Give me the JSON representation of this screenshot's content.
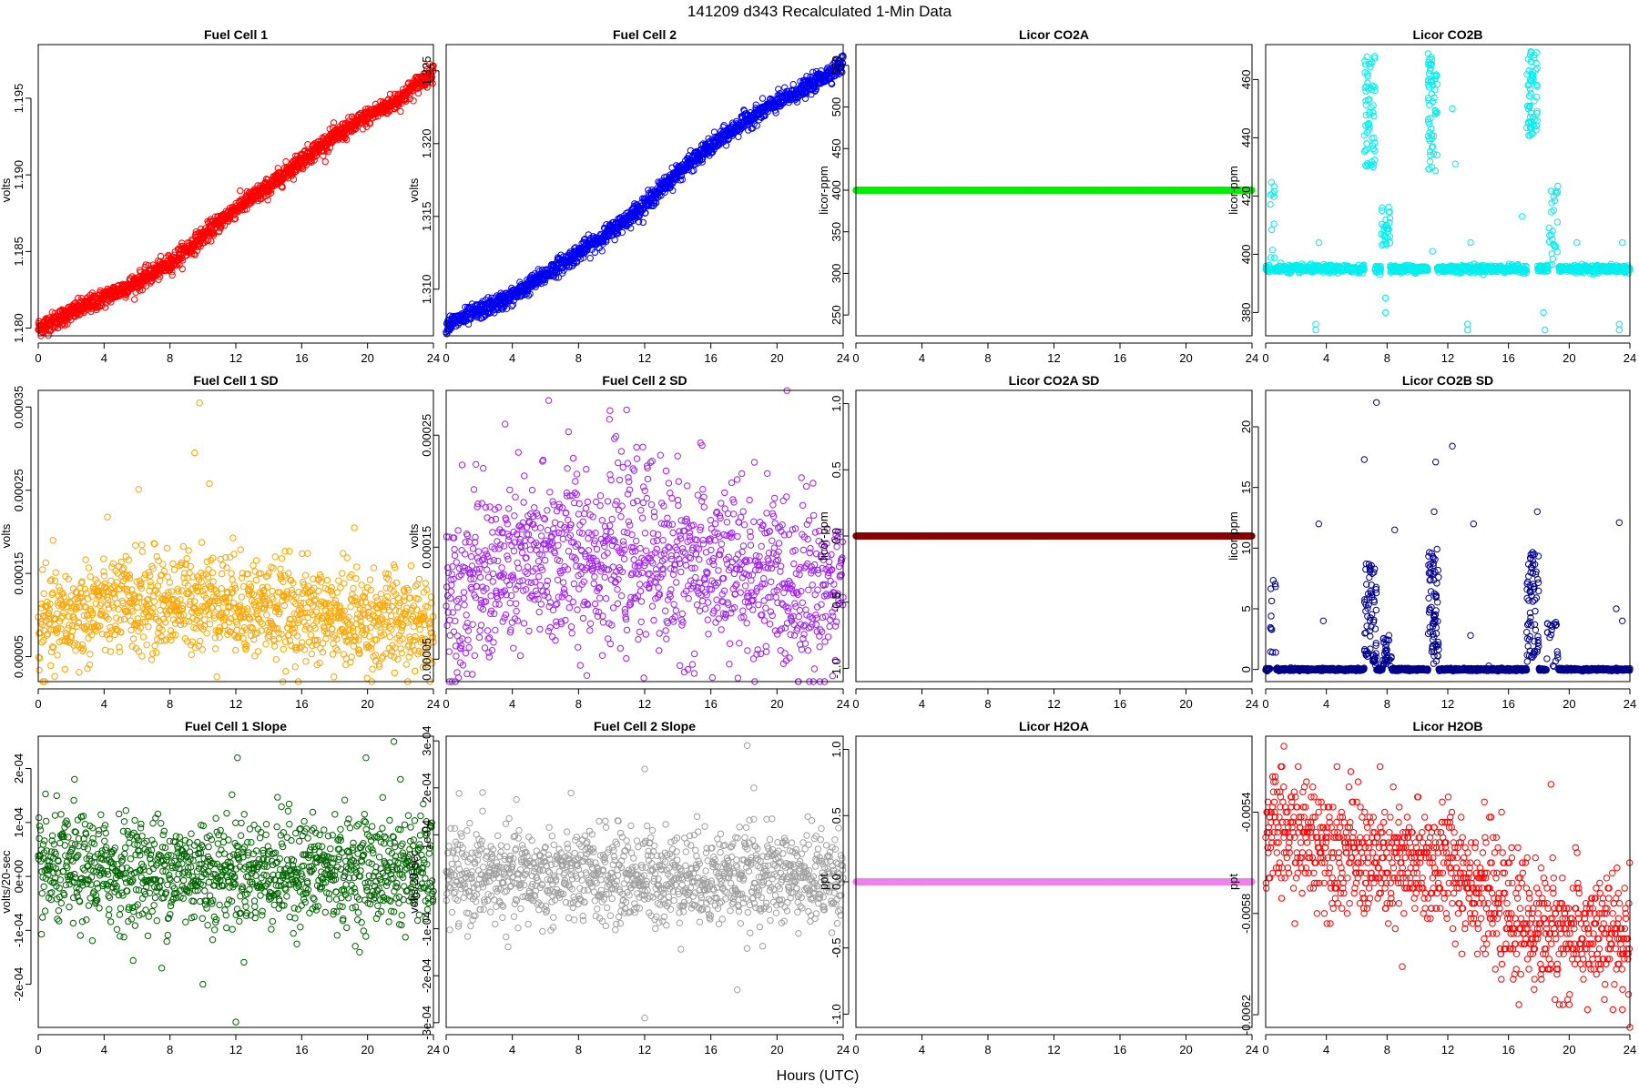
{
  "figure": {
    "main_title": "141209   d343   Recalculated 1-Min Data",
    "xlabel": "Hours (UTC)"
  },
  "chart_data": [
    {
      "type": "scatter",
      "title": "Fuel Cell 1",
      "ylabel": "volts",
      "color": "#ff0000",
      "xlim": [
        0,
        24
      ],
      "xticks": [
        0,
        4,
        8,
        12,
        16,
        20,
        24
      ],
      "ylim": [
        1.1795,
        1.1985
      ],
      "yticks": [
        1.18,
        1.185,
        1.19,
        1.195
      ],
      "ytick_labels": [
        "1.180",
        "1.185",
        "1.190",
        "1.195"
      ],
      "trend": [
        [
          0,
          1.18
        ],
        [
          2,
          1.181
        ],
        [
          4,
          1.182
        ],
        [
          6,
          1.183
        ],
        [
          8,
          1.1842
        ],
        [
          10,
          1.186
        ],
        [
          12,
          1.1878
        ],
        [
          14,
          1.1892
        ],
        [
          16,
          1.191
        ],
        [
          18,
          1.1925
        ],
        [
          20,
          1.1938
        ],
        [
          22,
          1.195
        ],
        [
          24,
          1.1968
        ]
      ],
      "noise": 0.0003,
      "n": 1440
    },
    {
      "type": "scatter",
      "title": "Fuel Cell 2",
      "ylabel": "volts",
      "color": "#0000ee",
      "xlim": [
        0,
        24
      ],
      "xticks": [
        0,
        4,
        8,
        12,
        16,
        20,
        24
      ],
      "ylim": [
        1.3068,
        1.3268
      ],
      "yticks": [
        1.31,
        1.315,
        1.32,
        1.325
      ],
      "ytick_labels": [
        "1.310",
        "1.315",
        "1.320",
        "1.325"
      ],
      "trend": [
        [
          0,
          1.3075
        ],
        [
          2,
          1.3085
        ],
        [
          4,
          1.3095
        ],
        [
          6,
          1.311
        ],
        [
          8,
          1.3125
        ],
        [
          10,
          1.314
        ],
        [
          12,
          1.3158
        ],
        [
          14,
          1.318
        ],
        [
          16,
          1.3198
        ],
        [
          18,
          1.3215
        ],
        [
          20,
          1.3228
        ],
        [
          22,
          1.324
        ],
        [
          24,
          1.3255
        ]
      ],
      "noise": 0.0003,
      "n": 1440
    },
    {
      "type": "scatter",
      "title": "Licor CO2A",
      "ylabel": "licor-ppm",
      "color": "#00ee00",
      "xlim": [
        0,
        24
      ],
      "xticks": [
        0,
        4,
        8,
        12,
        16,
        20,
        24
      ],
      "ylim": [
        225,
        575
      ],
      "yticks": [
        250,
        300,
        350,
        400,
        450,
        500,
        550
      ],
      "ytick_labels": [
        "250",
        "300",
        "350",
        "400",
        "450",
        "500",
        "550"
      ],
      "constant": 400,
      "n": 1440
    },
    {
      "type": "scatter",
      "title": "Licor CO2B",
      "ylabel": "licor-ppm",
      "color": "#00eeee",
      "xlim": [
        0,
        24
      ],
      "xticks": [
        0,
        4,
        8,
        12,
        16,
        20,
        24
      ],
      "ylim": [
        372,
        472
      ],
      "yticks": [
        380,
        400,
        420,
        440,
        460
      ],
      "ytick_labels": [
        "380",
        "400",
        "420",
        "440",
        "460"
      ],
      "baseline": 395,
      "noise": 0.6,
      "clusters": [
        {
          "x": [
            0.3,
            0.6
          ],
          "y": [
            398,
            425
          ],
          "n": 12
        },
        {
          "x": [
            6.5,
            7.2
          ],
          "y": [
            430,
            468
          ],
          "n": 60
        },
        {
          "x": [
            7.6,
            8.2
          ],
          "y": [
            403,
            417
          ],
          "n": 30
        },
        {
          "x": [
            10.7,
            11.3
          ],
          "y": [
            428,
            470
          ],
          "n": 60
        },
        {
          "x": [
            17.2,
            17.9
          ],
          "y": [
            440,
            470
          ],
          "n": 60
        },
        {
          "x": [
            18.6,
            19.3
          ],
          "y": [
            396,
            425
          ],
          "n": 25
        }
      ],
      "outliers": [
        [
          3.3,
          376
        ],
        [
          3.3,
          374
        ],
        [
          7.9,
          385
        ],
        [
          7.9,
          380
        ],
        [
          13.3,
          376
        ],
        [
          13.3,
          374
        ],
        [
          18.3,
          380
        ],
        [
          18.4,
          374
        ],
        [
          23.3,
          376
        ],
        [
          23.3,
          374
        ],
        [
          3.5,
          404
        ],
        [
          13.5,
          404
        ],
        [
          11.0,
          401
        ],
        [
          12.5,
          431
        ],
        [
          12.3,
          450
        ],
        [
          16.9,
          413
        ],
        [
          20.5,
          404
        ],
        [
          23.5,
          404
        ],
        [
          1.0,
          397
        ],
        [
          19.0,
          403
        ]
      ]
    },
    {
      "type": "scatter",
      "title": "Fuel Cell 1 SD",
      "ylabel": "volts",
      "color": "#ffa500",
      "xlim": [
        0,
        24
      ],
      "xticks": [
        0,
        4,
        8,
        12,
        16,
        20,
        24
      ],
      "ylim": [
        2e-05,
        0.00037
      ],
      "yticks": [
        5e-05,
        0.00015,
        0.00025,
        0.00035
      ],
      "ytick_labels": [
        "0.00005",
        "0.00015",
        "0.00025",
        "0.00035"
      ],
      "trend": [
        [
          0,
          8.5e-05
        ],
        [
          4,
          0.00011
        ],
        [
          8,
          0.000115
        ],
        [
          10,
          0.00012
        ],
        [
          12,
          0.000115
        ],
        [
          16,
          0.0001
        ],
        [
          20,
          9.5e-05
        ],
        [
          24,
          8.5e-05
        ]
      ],
      "noise": 3e-05,
      "n": 1200,
      "outliers": [
        [
          9.8,
          0.000355
        ],
        [
          9.5,
          0.000295
        ],
        [
          10.4,
          0.000258
        ],
        [
          6.1,
          0.000251
        ],
        [
          19.2,
          0.000205
        ]
      ]
    },
    {
      "type": "scatter",
      "title": "Fuel Cell 2 SD",
      "ylabel": "volts",
      "color": "#a020f0",
      "xlim": [
        0,
        24
      ],
      "xticks": [
        0,
        4,
        8,
        12,
        16,
        20,
        24
      ],
      "ylim": [
        3e-05,
        0.00029
      ],
      "yticks": [
        5e-05,
        0.00015,
        0.00025
      ],
      "ytick_labels": [
        "0.00005",
        "0.00015",
        "0.00025"
      ],
      "trend": [
        [
          0,
          0.00011
        ],
        [
          4,
          0.00013
        ],
        [
          8,
          0.000145
        ],
        [
          12,
          0.000145
        ],
        [
          16,
          0.00013
        ],
        [
          20,
          0.00012
        ],
        [
          24,
          0.00011
        ]
      ],
      "noise": 4e-05,
      "n": 1200,
      "outliers": [
        [
          6.2,
          0.000281
        ],
        [
          9.9,
          0.000272
        ],
        [
          7.4,
          0.000253
        ]
      ]
    },
    {
      "type": "scatter",
      "title": "Licor CO2A SD",
      "ylabel": "licor-ppm",
      "color": "#8b0000",
      "xlim": [
        0,
        24
      ],
      "xticks": [
        0,
        4,
        8,
        12,
        16,
        20,
        24
      ],
      "ylim": [
        -1.1,
        1.1
      ],
      "yticks": [
        -1.0,
        -0.5,
        0.0,
        0.5,
        1.0
      ],
      "ytick_labels": [
        "-1.0",
        "-0.5",
        "0.0",
        "0.5",
        "1.0"
      ],
      "constant": 0,
      "n": 1440
    },
    {
      "type": "scatter",
      "title": "Licor CO2B SD",
      "ylabel": "licor-ppm",
      "color": "#00008b",
      "xlim": [
        0,
        24
      ],
      "xticks": [
        0,
        4,
        8,
        12,
        16,
        20,
        24
      ],
      "ylim": [
        -1,
        23
      ],
      "yticks": [
        0,
        5,
        10,
        15,
        20
      ],
      "ytick_labels": [
        "0",
        "5",
        "10",
        "15",
        "20"
      ],
      "baseline": 0,
      "noise": 0.05,
      "clusters": [
        {
          "x": [
            0.3,
            0.7
          ],
          "y": [
            0.5,
            7.5
          ],
          "n": 12
        },
        {
          "x": [
            6.5,
            7.3
          ],
          "y": [
            0.3,
            9
          ],
          "n": 70
        },
        {
          "x": [
            7.7,
            8.3
          ],
          "y": [
            0.2,
            3
          ],
          "n": 30
        },
        {
          "x": [
            10.7,
            11.4
          ],
          "y": [
            0.3,
            10
          ],
          "n": 70
        },
        {
          "x": [
            17.2,
            18.0
          ],
          "y": [
            0.3,
            10
          ],
          "n": 70
        },
        {
          "x": [
            18.5,
            19.3
          ],
          "y": [
            0.2,
            4
          ],
          "n": 20
        }
      ],
      "outliers": [
        [
          7.3,
          22
        ],
        [
          6.5,
          17.3
        ],
        [
          11.2,
          17.1
        ],
        [
          12.3,
          18.4
        ],
        [
          11.1,
          13
        ],
        [
          17.9,
          13
        ],
        [
          3.5,
          12
        ],
        [
          8.5,
          11.5
        ],
        [
          13.7,
          12
        ],
        [
          23.3,
          12.1
        ],
        [
          23.5,
          4
        ],
        [
          3.8,
          4
        ],
        [
          13.5,
          2.8
        ],
        [
          14.7,
          0.3
        ],
        [
          23.1,
          5
        ]
      ]
    },
    {
      "type": "scatter",
      "title": "Fuel Cell 1 Slope",
      "ylabel": "volts/20-sec",
      "color": "#006400",
      "xlim": [
        0,
        24
      ],
      "xticks": [
        0,
        4,
        8,
        12,
        16,
        20,
        24
      ],
      "ylim": [
        -0.00028,
        0.00026
      ],
      "yticks": [
        -0.0002,
        -0.0001,
        0,
        0.0001,
        0.0002
      ],
      "ytick_labels": [
        "-2e-04",
        "-1e-04",
        "0e+00",
        "1e-04",
        "2e-04"
      ],
      "trend": [
        [
          0,
          1e-05
        ],
        [
          24,
          1e-05
        ]
      ],
      "noise": 5e-05,
      "n": 1200,
      "outliers": [
        [
          12.0,
          -0.00027
        ],
        [
          21.6,
          0.00025
        ],
        [
          2.2,
          0.00018
        ],
        [
          12.1,
          0.00022
        ],
        [
          22.0,
          0.00018
        ],
        [
          10.0,
          -0.0002
        ],
        [
          7.5,
          -0.00017
        ],
        [
          19.9,
          0.00022
        ]
      ]
    },
    {
      "type": "scatter",
      "title": "Fuel Cell 2 Slope",
      "ylabel": "volts/20-sec",
      "color": "#a0a0a0",
      "xlim": [
        0,
        24
      ],
      "xticks": [
        0,
        4,
        8,
        12,
        16,
        20,
        24
      ],
      "ylim": [
        -0.00031,
        0.00031
      ],
      "yticks": [
        -0.0003,
        -0.0002,
        -0.0001,
        0.0001,
        0.0002,
        0.0003
      ],
      "ytick_labels": [
        "-3e-04",
        "-2e-04",
        "-1e-04",
        "1e-04",
        "2e-04",
        "3e-04"
      ],
      "trend": [
        [
          0,
          1e-05
        ],
        [
          24,
          1e-05
        ]
      ],
      "noise": 5e-05,
      "n": 1200,
      "outliers": [
        [
          12.0,
          -0.00029
        ],
        [
          18.2,
          0.00029
        ],
        [
          17.6,
          -0.00023
        ],
        [
          12.0,
          0.00024
        ],
        [
          18.6,
          0.0002
        ],
        [
          2.2,
          0.00019
        ]
      ]
    },
    {
      "type": "scatter",
      "title": "Licor H2OA",
      "ylabel": "ppt",
      "color": "#ee82ee",
      "xlim": [
        0,
        24
      ],
      "xticks": [
        0,
        4,
        8,
        12,
        16,
        20,
        24
      ],
      "ylim": [
        -1.1,
        1.1
      ],
      "yticks": [
        -1.0,
        -0.5,
        0.0,
        0.5,
        1.0
      ],
      "ytick_labels": [
        "-1.0",
        "-0.5",
        "0.0",
        "0.5",
        "1.0"
      ],
      "constant": 0,
      "n": 1440
    },
    {
      "type": "scatter",
      "title": "Licor H2OB",
      "ylabel": "ppt",
      "color": "#ff0000",
      "xlim": [
        0,
        24
      ],
      "xticks": [
        0,
        4,
        8,
        12,
        16,
        20,
        24
      ],
      "ylim": [
        -0.00625,
        -0.0051
      ],
      "yticks": [
        -0.0062,
        -0.0058,
        -0.0054
      ],
      "ytick_labels": [
        "-0.0062",
        "-0.0058",
        "-0.0054"
      ],
      "trend": [
        [
          0,
          -0.00548
        ],
        [
          4,
          -0.00552
        ],
        [
          8,
          -0.00562
        ],
        [
          12,
          -0.0056
        ],
        [
          14,
          -0.00568
        ],
        [
          16,
          -0.00582
        ],
        [
          20,
          -0.00588
        ],
        [
          24,
          -0.0059
        ]
      ],
      "noise": 0.00012,
      "n": 1100,
      "quantize": 2e-05,
      "outliers": [
        [
          23.5,
          -0.00618
        ],
        [
          1.2,
          -0.00514
        ],
        [
          9.0,
          -0.00601
        ],
        [
          18.8,
          -0.00529
        ]
      ]
    }
  ]
}
